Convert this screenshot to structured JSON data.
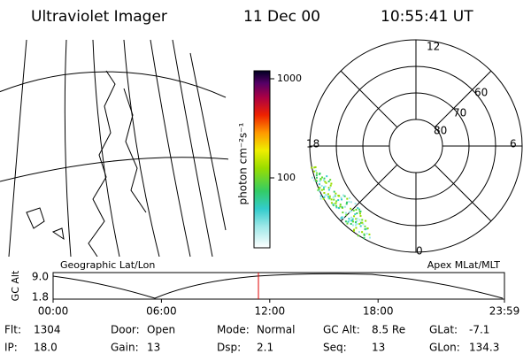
{
  "header": {
    "title": "Ultraviolet Imager",
    "date": "11 Dec 00",
    "time": "10:55:41 UT"
  },
  "map": {
    "caption": "Geographic Lat/Lon"
  },
  "colorbar": {
    "label": "photon cm⁻²s⁻¹",
    "ticks": [
      "1000",
      "100"
    ]
  },
  "polar": {
    "caption": "Apex MLat/MLT",
    "mlt_labels": [
      "12",
      "6",
      "0",
      "18"
    ],
    "lat_labels": [
      "60",
      "70",
      "80"
    ]
  },
  "timeline": {
    "axis_label": "GC Alt",
    "y_labels": [
      "9.0",
      "1.8"
    ],
    "x_labels": [
      "00:00",
      "06:00",
      "12:00",
      "18:00",
      "23:59"
    ]
  },
  "info": [
    [
      {
        "label": "Flt:",
        "value": "1304"
      },
      {
        "label": "Door:",
        "value": "Open"
      },
      {
        "label": "Mode:",
        "value": "Normal"
      },
      {
        "label": "GC Alt:",
        "value": "8.5 Re"
      },
      {
        "label": "GLat:",
        "value": "-7.1"
      }
    ],
    [
      {
        "label": "IP:",
        "value": "18.0"
      },
      {
        "label": "Gain:",
        "value": "13"
      },
      {
        "label": "Dsp:",
        "value": "2.1"
      },
      {
        "label": "Seq:",
        "value": "13"
      },
      {
        "label": "GLon:",
        "value": "134.3"
      }
    ]
  ]
}
